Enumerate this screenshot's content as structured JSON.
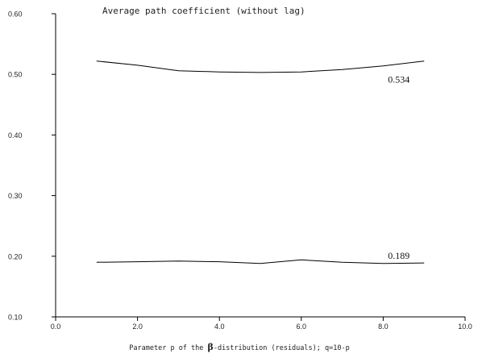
{
  "chart_data": {
    "type": "line",
    "title": "Average path coefficient (without lag)",
    "xlabel_parts": [
      "Parameter p of the ",
      "β",
      "-distribution (residuals); q=10-p"
    ],
    "ylabel": "",
    "xlim": [
      0.0,
      10.0
    ],
    "ylim": [
      0.1,
      0.6
    ],
    "xticks": [
      "0.0",
      "2.0",
      "4.0",
      "6.0",
      "8.0",
      "10.0"
    ],
    "yticks": [
      "0.10",
      "0.20",
      "0.30",
      "0.40",
      "0.50",
      "0.60"
    ],
    "xtick_values": [
      0,
      2,
      4,
      6,
      8,
      10
    ],
    "ytick_values": [
      0.1,
      0.2,
      0.3,
      0.4,
      0.5,
      0.6
    ],
    "grid": false,
    "legend": "none",
    "x": [
      1,
      2,
      3,
      4,
      5,
      6,
      7,
      8,
      9
    ],
    "series": [
      {
        "label": "0.534",
        "color": "#000000",
        "values": [
          0.522,
          0.515,
          0.506,
          0.504,
          0.503,
          0.504,
          0.508,
          0.514,
          0.522
        ]
      },
      {
        "label": "0.189",
        "color": "#000000",
        "values": [
          0.19,
          0.191,
          0.192,
          0.191,
          0.188,
          0.194,
          0.19,
          0.188,
          0.189
        ]
      }
    ]
  }
}
